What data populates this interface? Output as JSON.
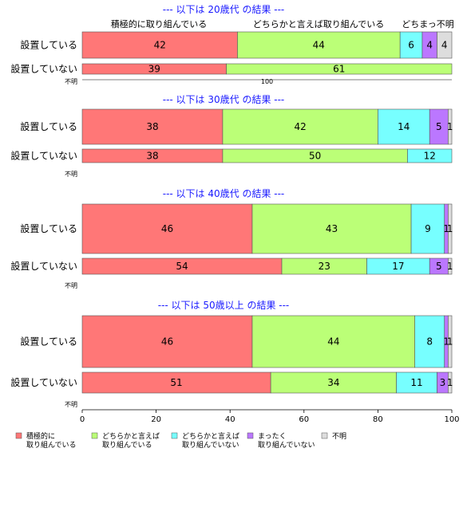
{
  "chart_data": {
    "type": "bar",
    "orientation": "horizontal",
    "stacked": true,
    "xlim": [
      0,
      100
    ],
    "xticks": [
      0,
      20,
      40,
      60,
      80,
      100
    ],
    "top_category_headers": [
      "積極的に取り組んでいる",
      "どちらかと言えば取り組んでいる",
      "どちまっ不明"
    ],
    "legend": {
      "position": "bottom",
      "entries": [
        {
          "lines": [
            "積極的に",
            "取り組んでいる"
          ],
          "color": "#ff7777"
        },
        {
          "lines": [
            "どちらかと言えば",
            "取り組んでいる"
          ],
          "color": "#bbff77"
        },
        {
          "lines": [
            "どちらかと言えば",
            "取り組んでいない"
          ],
          "color": "#77ffff"
        },
        {
          "lines": [
            "まったく",
            "取り組んでいない"
          ],
          "color": "#bb77ff"
        },
        {
          "lines": [
            "不明"
          ],
          "color": "#dddddd"
        }
      ]
    },
    "panels": [
      {
        "title": "--- 以下は 20歳代 の結果 ---",
        "unknown_label": "不明",
        "unknown_value": "100",
        "rows": [
          {
            "label": "設置している",
            "values": [
              42,
              44,
              6,
              4,
              4
            ],
            "shown": [
              "42",
              "44",
              "6",
              "4",
              "4"
            ]
          },
          {
            "label": "設置していない",
            "values": [
              39,
              61,
              0,
              0,
              0
            ],
            "shown": [
              "39",
              "61",
              "",
              "",
              ""
            ]
          }
        ]
      },
      {
        "title": "--- 以下は 30歳代 の結果 ---",
        "unknown_label": "不明",
        "rows": [
          {
            "label": "設置している",
            "values": [
              38,
              42,
              14,
              5,
              1
            ],
            "shown": [
              "38",
              "42",
              "14",
              "5",
              "1"
            ]
          },
          {
            "label": "設置していない",
            "values": [
              38,
              50,
              12,
              0,
              0
            ],
            "shown": [
              "38",
              "50",
              "12",
              "",
              ""
            ]
          }
        ]
      },
      {
        "title": "--- 以下は 40歳代 の結果 ---",
        "unknown_label": "不明",
        "rows": [
          {
            "label": "設置している",
            "values": [
              46,
              43,
              9,
              1,
              1
            ],
            "shown": [
              "46",
              "43",
              "9",
              "1",
              "1"
            ]
          },
          {
            "label": "設置していない",
            "values": [
              54,
              23,
              17,
              5,
              1
            ],
            "shown": [
              "54",
              "23",
              "17",
              "5",
              "1"
            ]
          }
        ]
      },
      {
        "title": "--- 以下は 50歳以上 の結果 ---",
        "unknown_label": "不明",
        "rows": [
          {
            "label": "設置している",
            "values": [
              46,
              44,
              8,
              1,
              1
            ],
            "shown": [
              "46",
              "44",
              "8",
              "1",
              "1"
            ]
          },
          {
            "label": "設置していない",
            "values": [
              51,
              34,
              11,
              3,
              1
            ],
            "shown": [
              "51",
              "34",
              "11",
              "3",
              "1"
            ]
          }
        ]
      }
    ]
  }
}
